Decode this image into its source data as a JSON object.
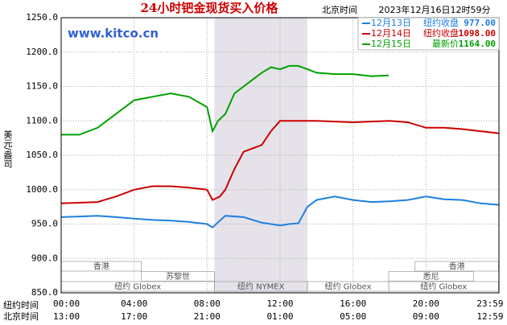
{
  "chart_data": {
    "type": "line",
    "title": "24小时钯金现货买入价格",
    "timezone_label": "北京时间",
    "timestamp": "2023年12月16日12时59分",
    "watermark": "www.kitco.cn",
    "ylabel": "美元/盎司",
    "x_row_labels": [
      "纽约时间",
      "北京时间"
    ],
    "xlim": [
      0,
      24
    ],
    "ylim": [
      850,
      1250
    ],
    "grid": true,
    "highlight": [
      8.4,
      13.5
    ],
    "yticks": [
      {
        "value": 850,
        "label": "850.0"
      },
      {
        "value": 900,
        "label": "900.0"
      },
      {
        "value": 950,
        "label": "950.0"
      },
      {
        "value": 1000,
        "label": "1000.0"
      },
      {
        "value": 1050,
        "label": "1050.0"
      },
      {
        "value": 1100,
        "label": "1100.0"
      },
      {
        "value": 1150,
        "label": "1150.0"
      },
      {
        "value": 1200,
        "label": "1200.0"
      },
      {
        "value": 1250,
        "label": "1250.0"
      }
    ],
    "xticks": [
      {
        "value": 0,
        "label": "00:00"
      },
      {
        "value": 4,
        "label": "04:00"
      },
      {
        "value": 8,
        "label": "08:00"
      },
      {
        "value": 12,
        "label": "12:00"
      },
      {
        "value": 16,
        "label": "16:00"
      },
      {
        "value": 20,
        "label": "20:00"
      },
      {
        "value": 23.98,
        "label": "23:59"
      }
    ],
    "xticks_secondary": [
      {
        "value": 0,
        "label": "13:00"
      },
      {
        "value": 4,
        "label": "17:00"
      },
      {
        "value": 8,
        "label": "21:00"
      },
      {
        "value": 12,
        "label": "01:00"
      },
      {
        "value": 16,
        "label": "05:00"
      },
      {
        "value": 20,
        "label": "09:00"
      },
      {
        "value": 23.98,
        "label": "12:59"
      }
    ],
    "sessions": [
      [
        {
          "label": "香港",
          "start": 0,
          "end": 4.4
        },
        {
          "label": "香港",
          "start": 19.4,
          "end": 23.98
        }
      ],
      [
        {
          "label": "苏黎世",
          "start": 4.4,
          "end": 8.4
        },
        {
          "label": "悉尼",
          "start": 17.96,
          "end": 22.6
        }
      ],
      [
        {
          "label": "纽约 Globex",
          "start": 0,
          "end": 8.4
        },
        {
          "label": "纽约 NYMEX",
          "start": 8.4,
          "end": 13.5
        },
        {
          "label": "纽约 Globex",
          "start": 13.5,
          "end": 17.96
        },
        {
          "label": "纽约 Globex",
          "start": 17.96,
          "end": 23.98
        }
      ]
    ],
    "series": [
      {
        "name": "12月13日",
        "color": "#1e7fe0",
        "close": {
          "label": "纽约收盘",
          "value": 977,
          "text": "977.00"
        },
        "x": [
          0,
          1,
          2,
          3,
          4,
          5,
          6,
          7,
          8,
          8.3,
          8.7,
          9,
          10,
          11,
          12,
          12.5,
          13,
          13.5,
          14,
          15,
          16,
          17,
          18,
          19,
          20,
          21,
          22,
          23,
          23.98
        ],
        "values": [
          960,
          961,
          962,
          960,
          958,
          956,
          955,
          953,
          950,
          945,
          955,
          962,
          960,
          952,
          948,
          950,
          951,
          975,
          985,
          990,
          985,
          982,
          983,
          985,
          990,
          986,
          985,
          980,
          978
        ]
      },
      {
        "name": "12月14日",
        "color": "#cc0000",
        "close": {
          "label": "纽约收盘",
          "value": 1098,
          "text": "1098.00"
        },
        "x": [
          0,
          1,
          2,
          3,
          4,
          5,
          6,
          7,
          8,
          8.3,
          8.7,
          9,
          9.5,
          10,
          11,
          11.5,
          12,
          13,
          14,
          15,
          16,
          17,
          18,
          19,
          20,
          21,
          22,
          23,
          23.98
        ],
        "values": [
          980,
          981,
          982,
          990,
          1000,
          1005,
          1005,
          1003,
          1000,
          985,
          990,
          1000,
          1030,
          1055,
          1065,
          1085,
          1100,
          1100,
          1100,
          1099,
          1098,
          1099,
          1100,
          1098,
          1090,
          1090,
          1088,
          1085,
          1082
        ]
      },
      {
        "name": "12月15日",
        "color": "#00a000",
        "close": {
          "label": "最新价",
          "value": 1164,
          "text": "1164.00"
        },
        "x": [
          0,
          1,
          2,
          3,
          4,
          5,
          6,
          7,
          8,
          8.3,
          8.6,
          9,
          9.5,
          10,
          10.5,
          11,
          11.5,
          12,
          12.5,
          13,
          13.5,
          14,
          15,
          16,
          17,
          17.96
        ],
        "values": [
          1080,
          1080,
          1090,
          1110,
          1130,
          1135,
          1140,
          1135,
          1120,
          1085,
          1100,
          1110,
          1140,
          1150,
          1160,
          1170,
          1178,
          1175,
          1180,
          1180,
          1175,
          1170,
          1168,
          1168,
          1165,
          1166
        ]
      }
    ]
  }
}
